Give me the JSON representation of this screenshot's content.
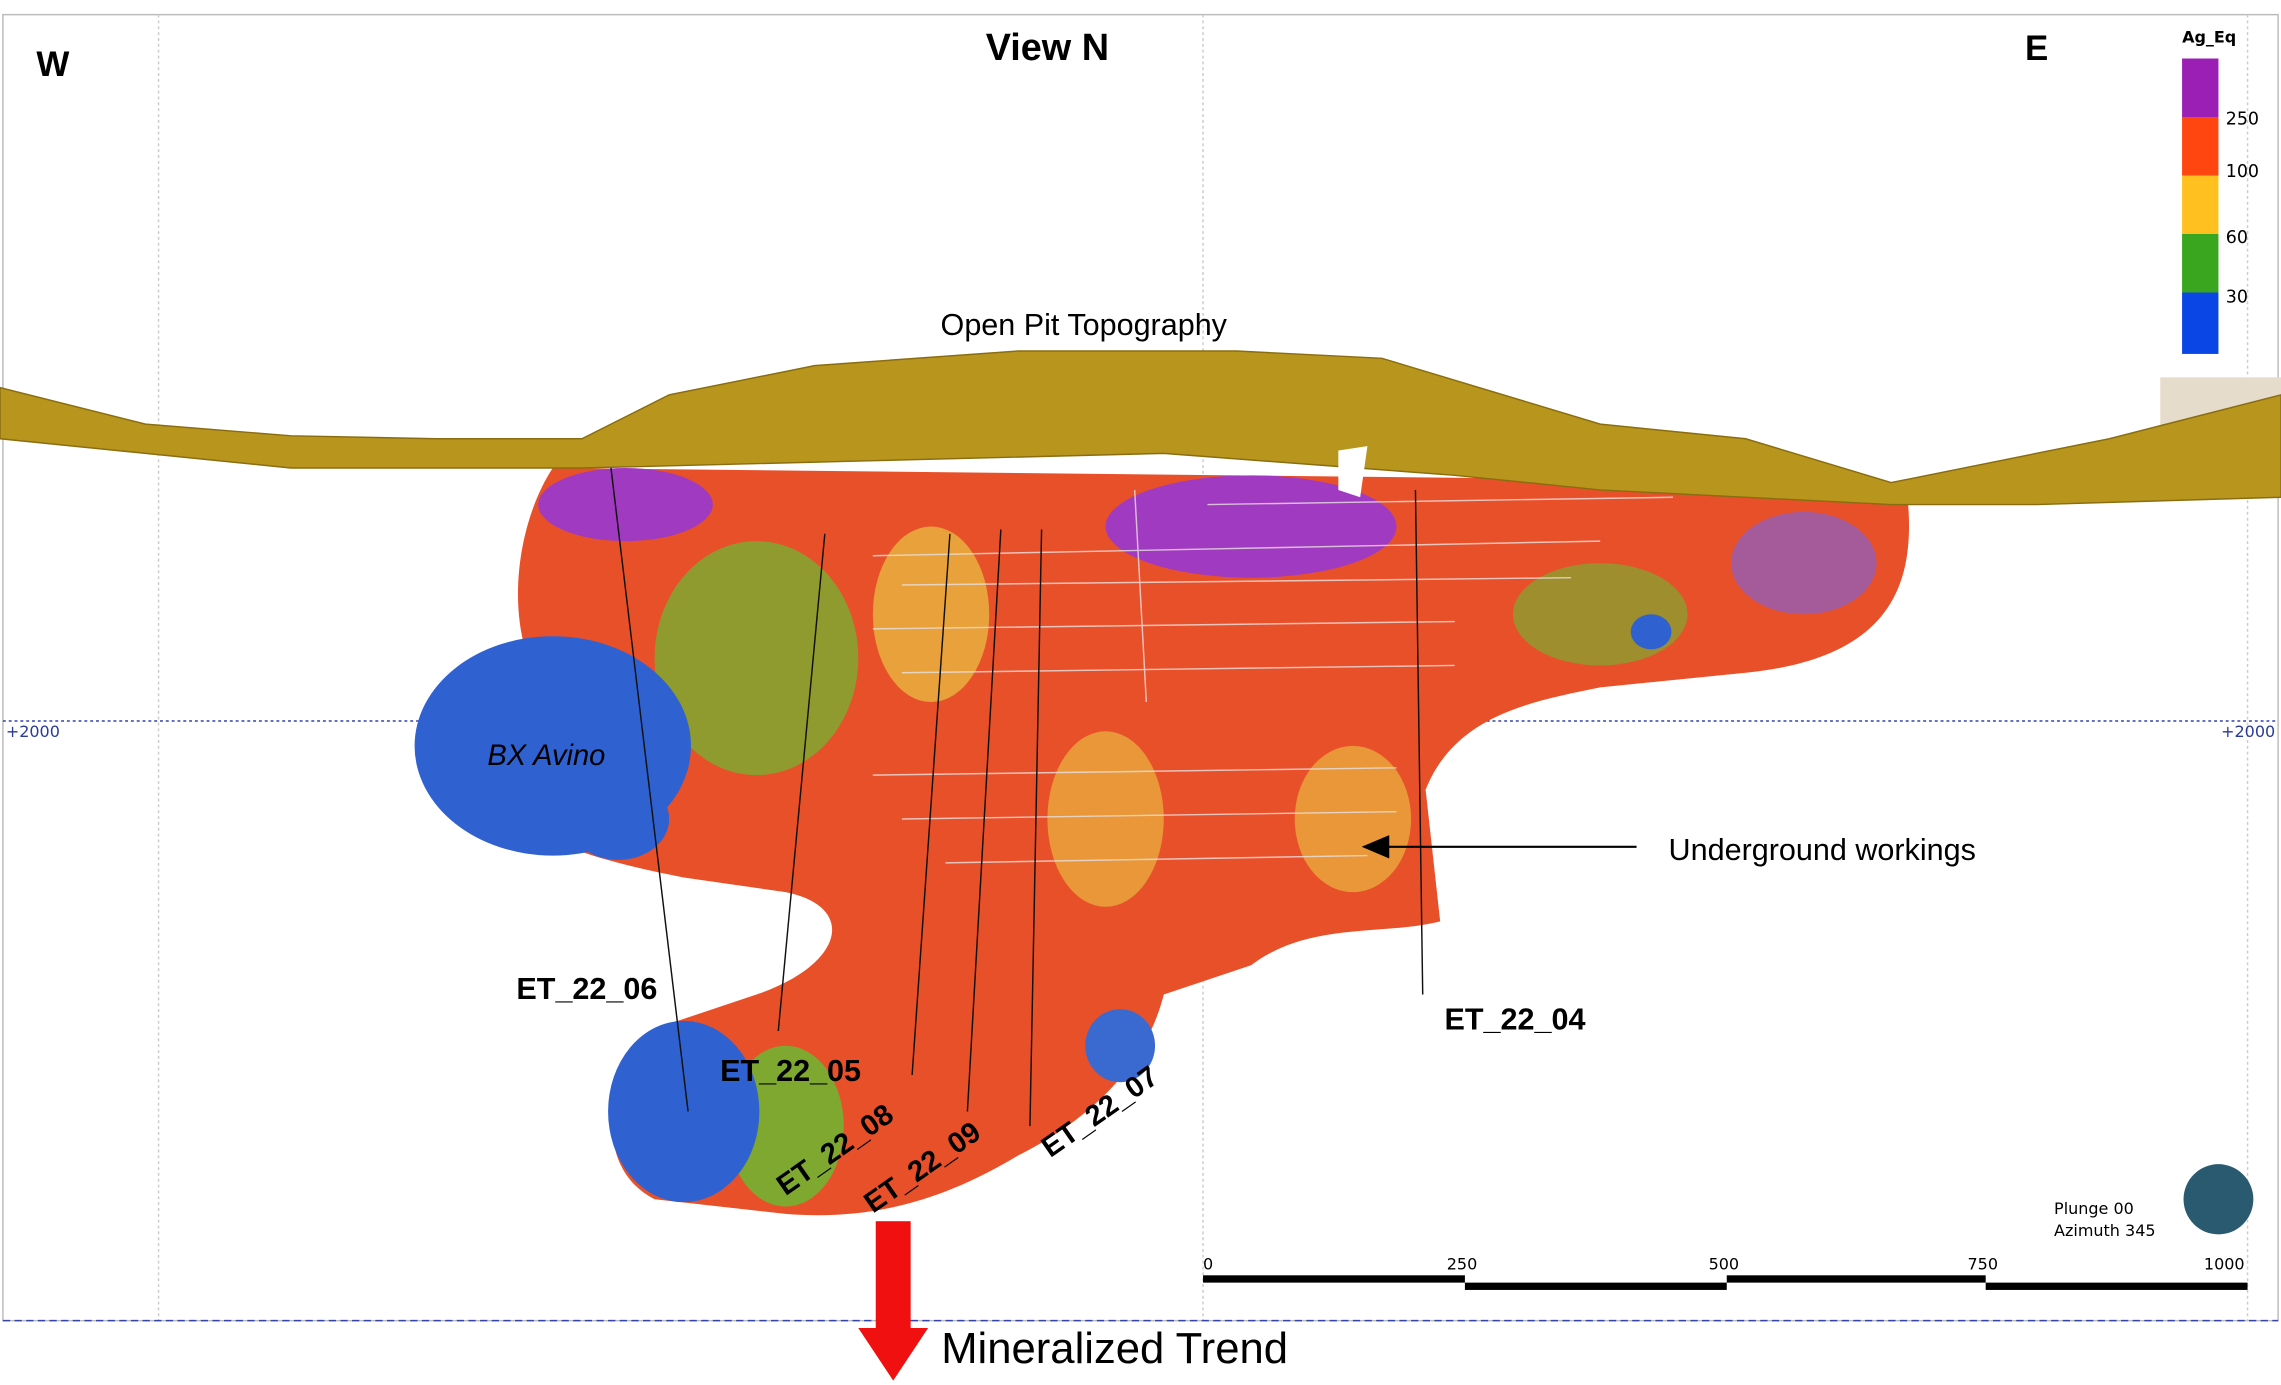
{
  "view_title": "View N",
  "west": "W",
  "east": "E",
  "legend": {
    "title": "Ag_Eq",
    "labels": [
      "250",
      "100",
      "60",
      "30"
    ]
  },
  "labels": {
    "topography": "Open Pit Topography",
    "bx": "BX Avino",
    "underground": "Underground workings",
    "trend": "Mineralized Trend"
  },
  "elevation": {
    "left": "+2000",
    "right": "+2000"
  },
  "drillholes": [
    "ET_22_06",
    "ET_22_05",
    "ET_22_08",
    "ET_22_09",
    "ET_22_07",
    "ET_22_04"
  ],
  "view_info": {
    "plunge": "Plunge 00",
    "azimuth": "Azimuth 345"
  },
  "scale_bar": [
    "0",
    "250",
    "500",
    "750",
    "1000"
  ]
}
